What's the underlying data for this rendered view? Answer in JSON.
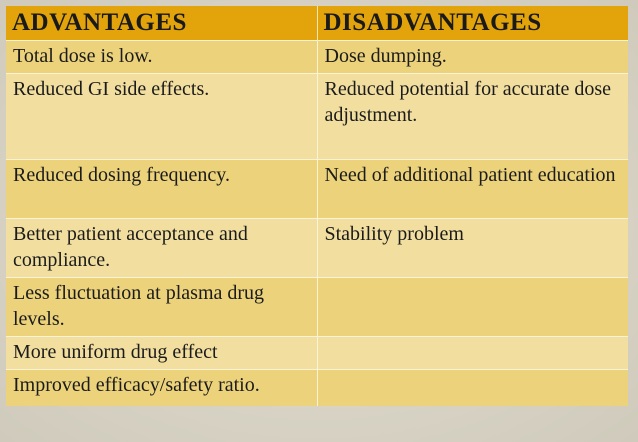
{
  "table": {
    "headers": [
      "ADVANTAGES",
      "DISADVANTAGES"
    ],
    "rows": [
      [
        "Total dose is low.",
        "Dose dumping."
      ],
      [
        "Reduced GI side effects.",
        "Reduced potential for accurate dose adjustment."
      ],
      [
        "Reduced dosing frequency.",
        "Need of additional patient education"
      ],
      [
        "Better patient acceptance and compliance.",
        "Stability problem"
      ],
      [
        "Less fluctuation at plasma drug levels.",
        ""
      ],
      [
        "More uniform drug effect",
        ""
      ],
      [
        "Improved efficacy/safety ratio.",
        ""
      ]
    ]
  },
  "colors": {
    "header_bg": "#e2a40a",
    "row_odd_bg": "#ebd27b",
    "row_even_bg": "#f2dfa0",
    "slide_bg": "#d8d4c6"
  }
}
